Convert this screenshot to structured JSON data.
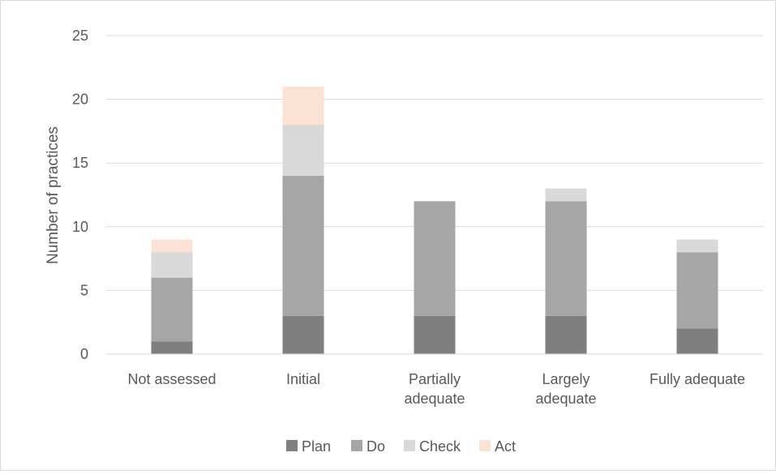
{
  "chart_data": {
    "type": "bar",
    "stacked": true,
    "title": "",
    "xlabel": "",
    "ylabel": "Number of practices",
    "ylim": [
      0,
      25
    ],
    "yticks": [
      0,
      5,
      10,
      15,
      20,
      25
    ],
    "grid": true,
    "legend_position": "bottom",
    "categories": [
      [
        "Not assessed"
      ],
      [
        "Initial"
      ],
      [
        "Partially",
        "adequate"
      ],
      [
        "Largely",
        "adequate"
      ],
      [
        "Fully adequate"
      ]
    ],
    "series": [
      {
        "name": "Plan",
        "color": "#7f7f7f",
        "values": [
          1,
          3,
          3,
          3,
          2
        ]
      },
      {
        "name": "Do",
        "color": "#a6a6a6",
        "values": [
          5,
          11,
          9,
          9,
          6
        ]
      },
      {
        "name": "Check",
        "color": "#d9d9d9",
        "values": [
          2,
          4,
          0,
          1,
          1
        ]
      },
      {
        "name": "Act",
        "color": "#fbe2d5",
        "values": [
          1,
          3,
          0,
          0,
          0
        ]
      }
    ],
    "colors": {
      "gridline": "#d9d9d9",
      "axis_line": "#d9d9d9",
      "text": "#595959"
    }
  }
}
